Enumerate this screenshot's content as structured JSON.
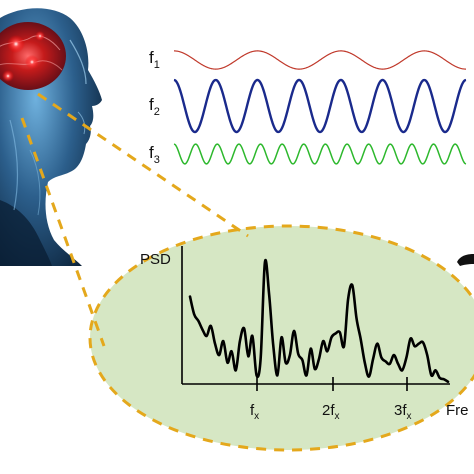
{
  "labels": {
    "f1": {
      "base": "f",
      "sub": "1"
    },
    "f2": {
      "base": "f",
      "sub": "2"
    },
    "f3": {
      "base": "f",
      "sub": "3"
    },
    "psd": "PSD",
    "x_ticks": [
      {
        "pre": "f",
        "sub": "x"
      },
      {
        "pre": "2f",
        "sub": "x"
      },
      {
        "pre": "3f",
        "sub": "x"
      }
    ],
    "x_axis": "Fre"
  },
  "colors": {
    "wave1": "#c0392b",
    "wave2": "#1a2a8c",
    "wave3": "#2db82d",
    "ellipse_fill": "#d6e7c4",
    "dash": "#e4a81c",
    "spectrum": "#000000",
    "head_dark": "#0c2038",
    "head_light": "#4f8fbf",
    "brain_red": "#e11b1b"
  },
  "icons": [
    "head-silhouette-illustration",
    "brain-activity-glow",
    "cable-fragment"
  ],
  "waves": [
    {
      "name": "f1",
      "cycles": 3.5,
      "stroke": 1.2,
      "amplitude": 0.35
    },
    {
      "name": "f2",
      "cycles": 7,
      "stroke": 2.4,
      "amplitude": 1.0
    },
    {
      "name": "f3",
      "cycles": 13.5,
      "stroke": 1.5,
      "amplitude": 0.38
    }
  ],
  "spectrum": {
    "peaks_at": [
      "fx",
      "2fx",
      "3fx"
    ],
    "profile": [
      0.68,
      0.54,
      0.49,
      0.42,
      0.37,
      0.45,
      0.31,
      0.22,
      0.33,
      0.16,
      0.25,
      0.1,
      0.33,
      0.43,
      0.21,
      0.37,
      0.06,
      0.2,
      0.95,
      0.7,
      0.3,
      0.06,
      0.36,
      0.16,
      0.22,
      0.41,
      0.23,
      0.18,
      0.06,
      0.27,
      0.11,
      0.19,
      0.33,
      0.25,
      0.36,
      0.39,
      0.4,
      0.29,
      0.66,
      0.77,
      0.51,
      0.35,
      0.16,
      0.05,
      0.19,
      0.31,
      0.2,
      0.17,
      0.15,
      0.22,
      0.15,
      0.1,
      0.2,
      0.35,
      0.29,
      0.31,
      0.32,
      0.22,
      0.06,
      0.1,
      0.04,
      0.03,
      0.01
    ]
  }
}
